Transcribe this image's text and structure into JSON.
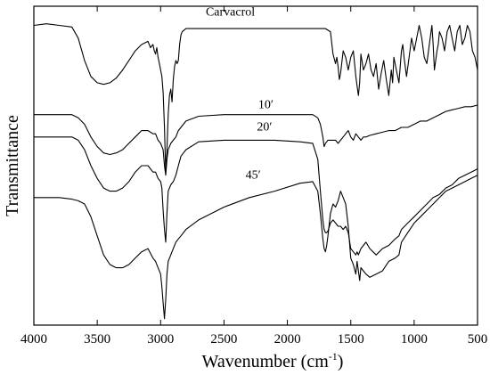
{
  "chart_data": {
    "type": "line",
    "title": "",
    "xlabel": "Wavenumber (cm",
    "xlabel_sup": "-1",
    "xlabel_close": ")",
    "ylabel": "Transmittance",
    "xlim": [
      4000,
      500
    ],
    "x_reversed": true,
    "ylim": [
      0,
      100
    ],
    "y_tick_labels": false,
    "grid": false,
    "legend": "none",
    "x_ticks": [
      {
        "value": 4000,
        "label": "4000"
      },
      {
        "value": 3500,
        "label": "3500"
      },
      {
        "value": 3000,
        "label": "3000"
      },
      {
        "value": 2500,
        "label": "2500"
      },
      {
        "value": 2000,
        "label": "2000"
      },
      {
        "value": 1500,
        "label": "1500"
      },
      {
        "value": 1000,
        "label": "1000"
      },
      {
        "value": 500,
        "label": "500"
      }
    ],
    "series": [
      {
        "name": "Carvacrol",
        "label_at": [
          2450,
          97
        ],
        "x": [
          4000,
          3900,
          3800,
          3700,
          3650,
          3600,
          3550,
          3500,
          3450,
          3400,
          3350,
          3300,
          3250,
          3200,
          3150,
          3100,
          3080,
          3060,
          3050,
          3040,
          3030,
          3020,
          3010,
          3000,
          2990,
          2980,
          2970,
          2960,
          2950,
          2940,
          2930,
          2920,
          2910,
          2900,
          2890,
          2880,
          2870,
          2860,
          2850,
          2840,
          2830,
          2800,
          2700,
          2500,
          2300,
          2100,
          1900,
          1800,
          1700,
          1660,
          1640,
          1620,
          1610,
          1600,
          1590,
          1580,
          1560,
          1540,
          1520,
          1500,
          1480,
          1460,
          1450,
          1440,
          1430,
          1420,
          1400,
          1380,
          1360,
          1340,
          1320,
          1300,
          1280,
          1260,
          1240,
          1220,
          1200,
          1180,
          1170,
          1160,
          1140,
          1120,
          1100,
          1090,
          1080,
          1060,
          1040,
          1020,
          1000,
          980,
          960,
          940,
          920,
          900,
          880,
          860,
          850,
          840,
          820,
          810,
          800,
          780,
          760,
          740,
          720,
          700,
          680,
          660,
          640,
          620,
          600,
          580,
          560,
          540,
          520,
          500
        ],
        "y": [
          94,
          94.5,
          94,
          93.5,
          90,
          83,
          78,
          76,
          75.5,
          76,
          77.5,
          80,
          83,
          86,
          88,
          89,
          87,
          88,
          86,
          85,
          87,
          84,
          82,
          80,
          78,
          73,
          62,
          48,
          55,
          66,
          72,
          74,
          70,
          77,
          81,
          83,
          82,
          83,
          88,
          91,
          92,
          93,
          93,
          93,
          93,
          93,
          93,
          93,
          93,
          92,
          85,
          82,
          84,
          81,
          77,
          79,
          86,
          84,
          80,
          84,
          86,
          78,
          75,
          72,
          76,
          85,
          80,
          82,
          85,
          80,
          78,
          82,
          74,
          79,
          83,
          77,
          72,
          80,
          76,
          84,
          80,
          76,
          86,
          88,
          84,
          78,
          84,
          90,
          86,
          90,
          94,
          90,
          84,
          82,
          88,
          94,
          88,
          80,
          86,
          88,
          92,
          90,
          86,
          92,
          94,
          90,
          86,
          92,
          94,
          88,
          90,
          94,
          92,
          86,
          84,
          80
        ]
      },
      {
        "name": "10′",
        "label_at": [
          2170,
          68
        ],
        "x": [
          4000,
          3900,
          3800,
          3700,
          3650,
          3600,
          3550,
          3500,
          3450,
          3400,
          3350,
          3300,
          3250,
          3200,
          3150,
          3100,
          3060,
          3040,
          3020,
          3000,
          2980,
          2970,
          2960,
          2950,
          2940,
          2920,
          2900,
          2880,
          2860,
          2840,
          2800,
          2700,
          2500,
          2300,
          2100,
          1900,
          1800,
          1760,
          1740,
          1720,
          1710,
          1700,
          1690,
          1680,
          1660,
          1620,
          1600,
          1580,
          1560,
          1540,
          1520,
          1500,
          1480,
          1460,
          1440,
          1420,
          1400,
          1380,
          1350,
          1300,
          1250,
          1200,
          1150,
          1100,
          1050,
          1000,
          950,
          900,
          850,
          800,
          750,
          700,
          650,
          600,
          550,
          500
        ],
        "y": [
          66,
          66,
          66,
          66,
          65,
          63,
          59,
          56,
          54,
          53.5,
          54,
          55,
          57,
          59,
          61,
          61,
          60,
          60,
          58,
          57,
          55,
          50,
          47,
          52,
          55,
          57,
          58,
          59,
          61,
          62,
          64,
          65.5,
          66,
          66,
          66,
          66,
          66,
          65,
          63,
          59,
          56,
          57,
          57.5,
          58,
          58,
          58,
          57,
          58,
          59,
          60,
          61,
          59,
          58,
          60,
          59,
          58,
          59,
          59,
          59.5,
          60,
          60.5,
          61,
          61,
          62,
          62,
          63,
          64,
          64,
          65,
          66,
          67,
          67.5,
          68,
          68.5,
          68.5,
          69
        ]
      },
      {
        "name": "20′",
        "label_at": [
          2180,
          61
        ],
        "x": [
          4000,
          3900,
          3800,
          3700,
          3650,
          3600,
          3550,
          3500,
          3450,
          3400,
          3350,
          3300,
          3250,
          3200,
          3150,
          3100,
          3060,
          3040,
          3020,
          3000,
          2990,
          2980,
          2970,
          2960,
          2950,
          2940,
          2920,
          2900,
          2880,
          2860,
          2840,
          2800,
          2700,
          2500,
          2300,
          2100,
          1900,
          1800,
          1760,
          1740,
          1720,
          1710,
          1700,
          1690,
          1680,
          1660,
          1640,
          1620,
          1600,
          1580,
          1560,
          1540,
          1520,
          1500,
          1480,
          1460,
          1450,
          1440,
          1430,
          1420,
          1400,
          1380,
          1350,
          1300,
          1250,
          1200,
          1150,
          1120,
          1100,
          1050,
          1000,
          950,
          900,
          850,
          800,
          750,
          700,
          650,
          600,
          550,
          500
        ],
        "y": [
          59,
          59,
          59,
          59,
          58,
          55,
          50,
          46,
          43,
          42,
          42,
          43,
          45,
          48,
          50,
          50,
          48,
          48,
          46,
          45,
          43,
          36,
          30,
          26,
          35,
          42,
          44,
          45,
          47,
          50,
          53,
          55,
          57.5,
          58,
          58,
          58,
          57.5,
          57,
          52,
          42,
          33,
          30,
          29,
          29,
          29.5,
          32,
          33,
          32,
          31,
          31,
          30,
          31,
          29,
          24,
          23,
          22,
          23,
          22,
          23,
          24,
          25,
          26,
          24,
          22,
          24,
          25,
          27,
          28,
          30,
          32,
          34,
          36,
          38,
          40,
          41,
          43,
          44,
          46,
          47,
          48,
          49
        ]
      },
      {
        "name": "45′",
        "label_at": [
          2270,
          46
        ],
        "x": [
          4000,
          3900,
          3800,
          3700,
          3650,
          3600,
          3550,
          3500,
          3450,
          3400,
          3350,
          3300,
          3250,
          3200,
          3150,
          3100,
          3060,
          3040,
          3020,
          3000,
          2990,
          2980,
          2970,
          2960,
          2950,
          2940,
          2920,
          2900,
          2880,
          2860,
          2840,
          2800,
          2700,
          2500,
          2300,
          2100,
          1900,
          1800,
          1760,
          1740,
          1720,
          1710,
          1700,
          1690,
          1680,
          1660,
          1640,
          1620,
          1600,
          1580,
          1560,
          1540,
          1520,
          1500,
          1480,
          1460,
          1450,
          1440,
          1430,
          1420,
          1400,
          1380,
          1350,
          1300,
          1250,
          1200,
          1150,
          1120,
          1100,
          1050,
          1000,
          950,
          900,
          850,
          800,
          750,
          700,
          650,
          600,
          550,
          500
        ],
        "y": [
          40,
          40,
          40,
          39.5,
          39,
          38,
          34,
          28,
          22,
          19,
          18,
          18,
          19,
          21,
          23,
          24,
          21,
          20,
          18,
          16,
          12,
          7,
          2,
          8,
          16,
          20,
          22,
          24,
          26,
          27,
          28,
          30,
          33,
          37,
          40,
          42,
          44.5,
          45,
          42,
          35,
          27,
          24,
          23,
          25,
          28,
          35,
          38,
          37,
          39,
          42,
          40,
          38,
          31,
          21,
          19,
          16,
          20,
          17,
          14,
          18,
          17,
          16,
          15,
          16,
          17,
          20,
          21,
          22,
          26,
          29,
          32,
          34,
          36,
          38,
          40,
          42,
          43,
          44,
          45,
          46,
          47
        ]
      }
    ]
  }
}
